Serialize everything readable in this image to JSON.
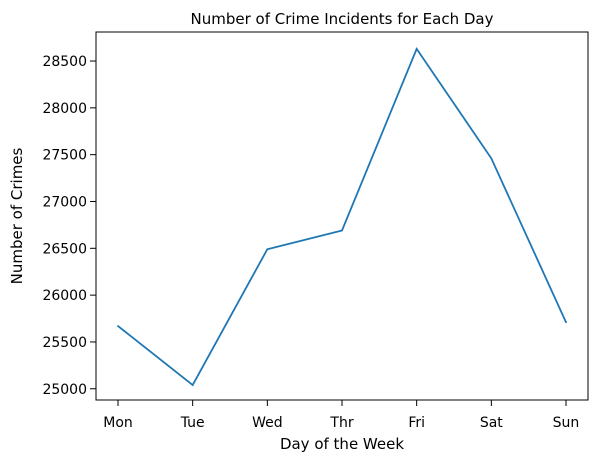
{
  "chart_data": {
    "type": "line",
    "title": "Number of Crime Incidents for Each Day",
    "xlabel": "Day of the Week",
    "ylabel": "Number of Crimes",
    "categories": [
      "Mon",
      "Tue",
      "Wed",
      "Thr",
      "Fri",
      "Sat",
      "Sun"
    ],
    "series": [
      {
        "values": [
          25670,
          25040,
          26490,
          26690,
          28630,
          27460,
          25710
        ],
        "color": "#1f77b4"
      }
    ],
    "yticks": [
      25000,
      25500,
      26000,
      26500,
      27000,
      27500,
      28000,
      28500
    ],
    "ylim": [
      24880,
      28810
    ],
    "grid": false,
    "legend": false
  }
}
